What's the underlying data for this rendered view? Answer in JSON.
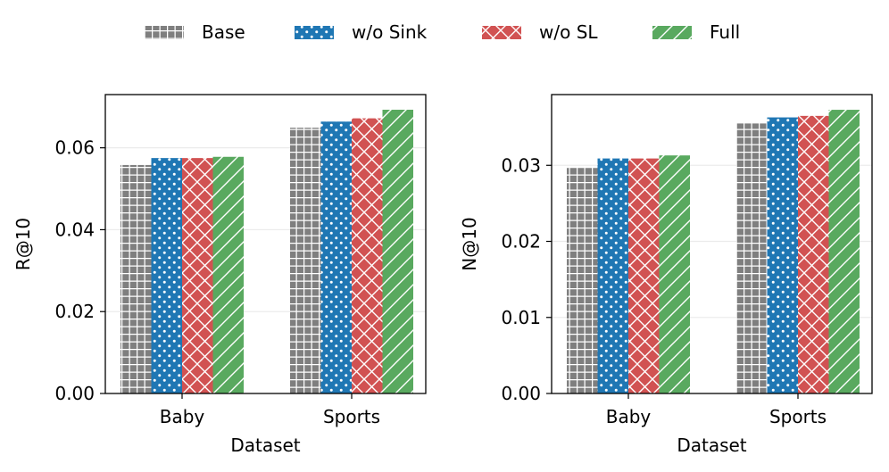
{
  "legend": [
    {
      "key": "base",
      "label": "Base",
      "color": "#7f7f7f",
      "pattern": "grid"
    },
    {
      "key": "wo_sink",
      "label": "w/o Sink",
      "color": "#1f77b4",
      "pattern": "dots"
    },
    {
      "key": "wo_sl",
      "label": "w/o SL",
      "color": "#d15252",
      "pattern": "cross"
    },
    {
      "key": "full",
      "label": "Full",
      "color": "#59a95f",
      "pattern": "diag"
    }
  ],
  "chart_data": [
    {
      "type": "bar",
      "title": "",
      "xlabel": "Dataset",
      "ylabel": "R@10",
      "categories": [
        "Baby",
        "Sports"
      ],
      "ylim": [
        0,
        0.073
      ],
      "yticks": [
        0.0,
        0.02,
        0.04,
        0.06
      ],
      "ytick_labels": [
        "0.00",
        "0.02",
        "0.04",
        "0.06"
      ],
      "grid": true,
      "series": [
        {
          "name": "Base",
          "values": [
            0.0558,
            0.0649
          ]
        },
        {
          "name": "w/o Sink",
          "values": [
            0.0575,
            0.0664
          ]
        },
        {
          "name": "w/o SL",
          "values": [
            0.0575,
            0.0672
          ]
        },
        {
          "name": "Full",
          "values": [
            0.0578,
            0.0693
          ]
        }
      ]
    },
    {
      "type": "bar",
      "title": "",
      "xlabel": "Dataset",
      "ylabel": "N@10",
      "categories": [
        "Baby",
        "Sports"
      ],
      "ylim": [
        0,
        0.0393
      ],
      "yticks": [
        0.0,
        0.01,
        0.02,
        0.03
      ],
      "ytick_labels": [
        "0.00",
        "0.01",
        "0.02",
        "0.03"
      ],
      "grid": true,
      "series": [
        {
          "name": "Base",
          "values": [
            0.0298,
            0.0355
          ]
        },
        {
          "name": "w/o Sink",
          "values": [
            0.0309,
            0.0363
          ]
        },
        {
          "name": "w/o SL",
          "values": [
            0.0309,
            0.0365
          ]
        },
        {
          "name": "Full",
          "values": [
            0.0313,
            0.0373
          ]
        }
      ]
    }
  ]
}
